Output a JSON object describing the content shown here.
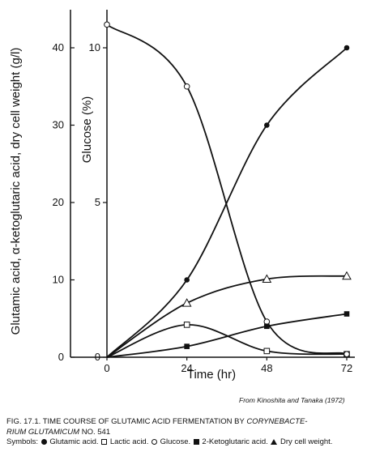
{
  "chart_data": {
    "type": "line",
    "x": [
      0,
      24,
      48,
      72
    ],
    "xlabel": "Time (hr)",
    "xlim": [
      0,
      72
    ],
    "x_ticks": [
      "0",
      "24",
      "48",
      "72"
    ],
    "ylabel_left": "Glutamic acid, α-ketoglutaric acid, dry cell weight (g/l)",
    "ylim_left": [
      0,
      44
    ],
    "y_ticks_left": [
      "0",
      "10",
      "20",
      "30",
      "40"
    ],
    "ylabel_right": "Glucose (%)",
    "ylim_right": [
      0,
      11
    ],
    "y_ticks_right": [
      "0",
      "5",
      "10"
    ],
    "grid": false,
    "series": [
      {
        "name": "Glutamic acid",
        "marker": "filled-circle",
        "axis": "left",
        "values": [
          0,
          10,
          30,
          40
        ]
      },
      {
        "name": "Lactic acid",
        "marker": "open-square",
        "axis": "left",
        "values": [
          0,
          4.2,
          0.8,
          0.4
        ]
      },
      {
        "name": "Glucose",
        "marker": "open-circle",
        "axis": "right",
        "values": [
          10.75,
          8.75,
          1.15,
          0.1
        ]
      },
      {
        "name": "2-Ketoglutaric acid",
        "marker": "filled-square",
        "axis": "left",
        "values": [
          0,
          1.4,
          4,
          5.6
        ]
      },
      {
        "name": "Dry cell weight",
        "marker": "open-triangle",
        "axis": "left",
        "values": [
          0,
          7,
          10.1,
          10.5
        ]
      }
    ]
  },
  "source": "From Kinoshita and Tanaka (1972)",
  "caption": {
    "line1_prefix": "FIG. 17.1.   TIME COURSE OF GLUTAMIC ACID FERMENTATION BY ",
    "line1_italic": "CORYNEBACTE-",
    "line2_italic": "RIUM GLUTAMICUM",
    "line2_rest": " NO. 541",
    "symbols_prefix": "Symbols:",
    "symbols": [
      {
        "marker": "filled-circle",
        "label": "Glutamic acid."
      },
      {
        "marker": "open-square",
        "label": "Lactic acid."
      },
      {
        "marker": "open-circle",
        "label": "Glucose."
      },
      {
        "marker": "filled-square",
        "label": "2-Ketoglutaric acid."
      },
      {
        "marker": "open-triangle",
        "label": "Dry cell weight."
      }
    ]
  }
}
